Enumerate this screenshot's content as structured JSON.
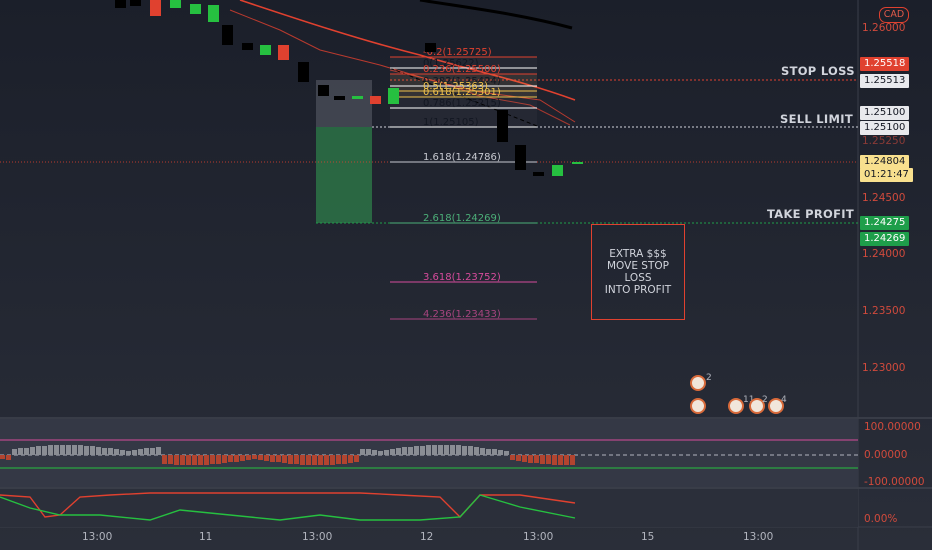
{
  "currency_badge": "CAD",
  "price_scale": {
    "labels": [
      "1.26000",
      "1.24000",
      "1.23500",
      "1.23000"
    ],
    "label_color": "#d04a3c"
  },
  "price_tags": {
    "stop_loss_upper": "1.25518",
    "stop_loss_lower": "1.25513",
    "sell_limit_upper": "1.25100",
    "sell_limit_lower": "1.25100",
    "current_price": "1.24804",
    "countdown": "01:21:47",
    "take_profit_upper": "1.24275",
    "take_profit_lower": "1.24269",
    "faded_upper": "1.25250",
    "faded_mid": "1.24500"
  },
  "side_labels": {
    "stop_loss": "STOP LOSS",
    "sell_limit": "SELL LIMIT",
    "take_profit": "TAKE PROFIT"
  },
  "fib_levels": [
    {
      "label": "-0.2(1.25725)",
      "color": "#e0412f"
    },
    {
      "label": "0(1.25622)",
      "color": "#ffffff"
    },
    {
      "label": "0.236(1.25500)",
      "color": "#e0412f"
    },
    {
      "label": "0.382(1.25424)",
      "color": "#ffffff"
    },
    {
      "label": "0.5(1.25363)",
      "color": "#f0c24b"
    },
    {
      "label": "0.618(1.25301)",
      "color": "#f0c24b"
    },
    {
      "label": "0.786(1.25215)",
      "color": "#ffffff"
    },
    {
      "label": "1(1.25105)",
      "color": "#ffffff"
    },
    {
      "label": "1.618(1.24786)",
      "color": "#c7c9d0"
    },
    {
      "label": "2.618(1.24269)",
      "color": "#4caf78"
    },
    {
      "label": "3.618(1.23752)",
      "color": "#d64b9c"
    },
    {
      "label": "4.236(1.23433)",
      "color": "#a8457f"
    }
  ],
  "note": "EXTRA $$$\nMOVE STOP\nLOSS\nINTO PROFIT",
  "oscillator_1": {
    "labels": [
      "100.00000",
      "0.00000",
      "-100.00000"
    ]
  },
  "oscillator_2": {
    "labels": [
      "0.00%"
    ]
  },
  "time_axis": [
    "13:00",
    "11",
    "13:00",
    "12",
    "13:00",
    "15",
    "13:00"
  ],
  "event_counts": [
    "2",
    "11",
    "2",
    "4"
  ],
  "colors": {
    "up_candle": "#26a69a",
    "down_candle": "#ef5350",
    "accent_red": "#e0412f",
    "take_profit_green": "#1e9e4a"
  }
}
